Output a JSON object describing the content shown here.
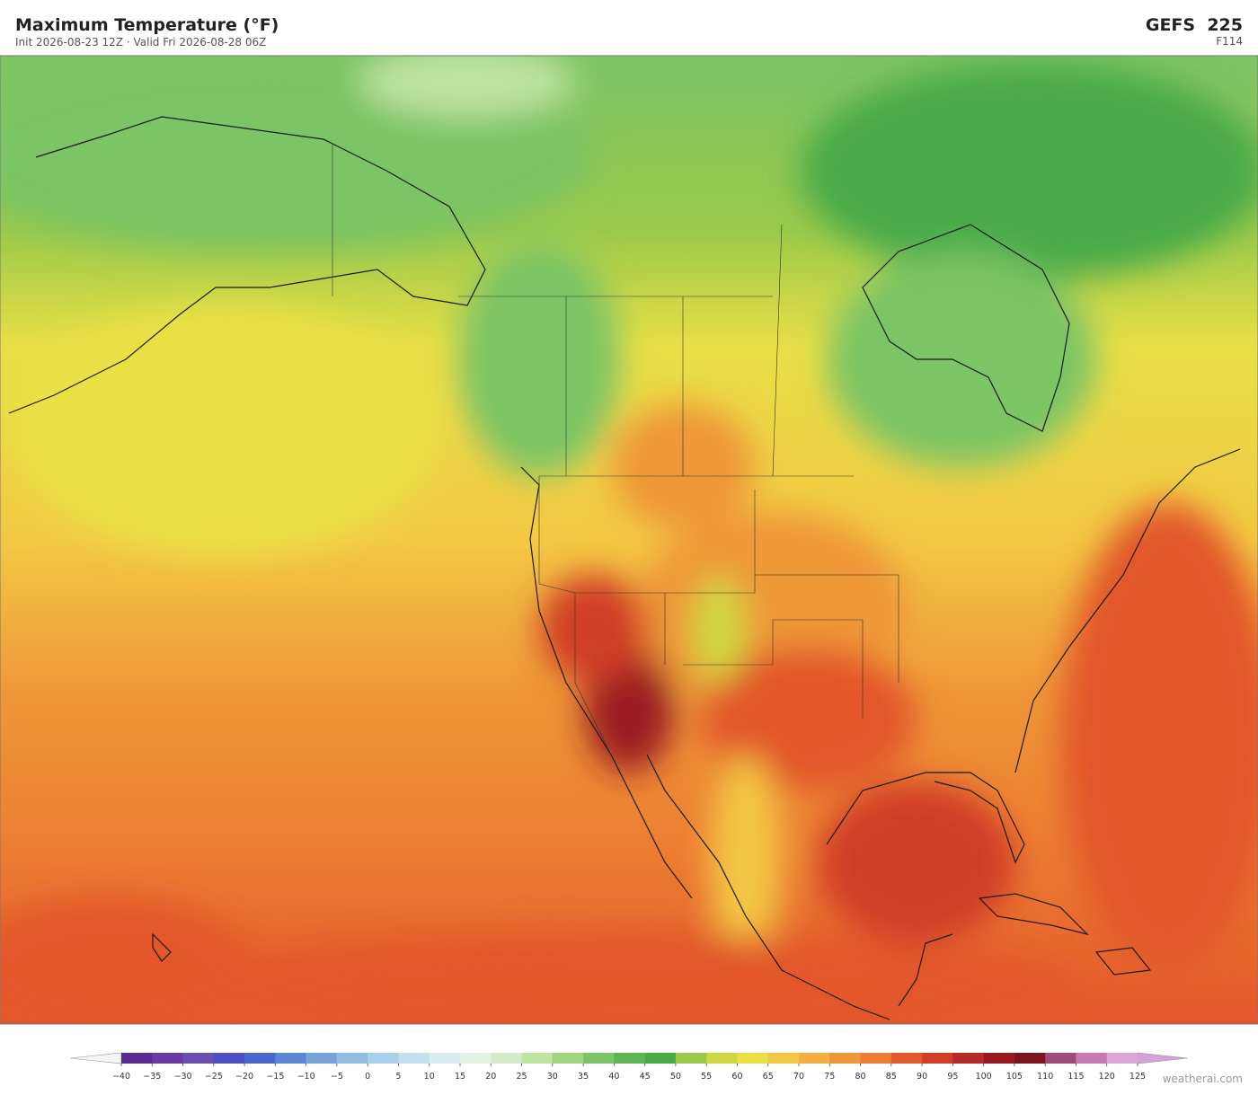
{
  "header": {
    "title": "Maximum Temperature  (°F)",
    "subtitle": "Init 2026-08-23 12Z  ·  Valid Fri 2026-08-28 06Z",
    "model": "GEFS  225",
    "forecast_hour": "F114"
  },
  "colorbar": {
    "ticks": [
      {
        "value": -40,
        "label": "−40"
      },
      {
        "value": -35,
        "label": "−35"
      },
      {
        "value": -30,
        "label": "−30"
      },
      {
        "value": -25,
        "label": "−25"
      },
      {
        "value": -20,
        "label": "−20"
      },
      {
        "value": -15,
        "label": "−15"
      },
      {
        "value": -10,
        "label": "−10"
      },
      {
        "value": -5,
        "label": "−5"
      },
      0,
      5,
      10,
      15,
      20,
      25,
      30,
      35,
      40,
      45,
      50,
      55,
      60,
      65,
      70,
      75,
      80,
      85,
      90,
      95,
      100,
      105,
      110,
      115,
      120,
      125
    ],
    "colors": [
      "#5b2c8f",
      "#6a3a9e",
      "#6b4fb0",
      "#4b4fc0",
      "#4a66cc",
      "#5b86d4",
      "#78a3d9",
      "#90bde0",
      "#a8d0e8",
      "#c2e0ee",
      "#d8ecf0",
      "#e4f2e6",
      "#d3ebc8",
      "#bfe3a0",
      "#9fd582",
      "#7cc465",
      "#5db455",
      "#4aaa4a",
      "#9ac94a",
      "#cdd843",
      "#eae044",
      "#f3c844",
      "#f2b043",
      "#ee9738",
      "#ec7d32",
      "#e2572c",
      "#d03d28",
      "#b62a27",
      "#9a1a22",
      "#7c1520",
      "#9e4b7a",
      "#c67bb0",
      "#dba6d6"
    ],
    "under_color": "#f4f4f4",
    "over_color": "#d9a0d6"
  },
  "credit": "weatherai.com"
}
